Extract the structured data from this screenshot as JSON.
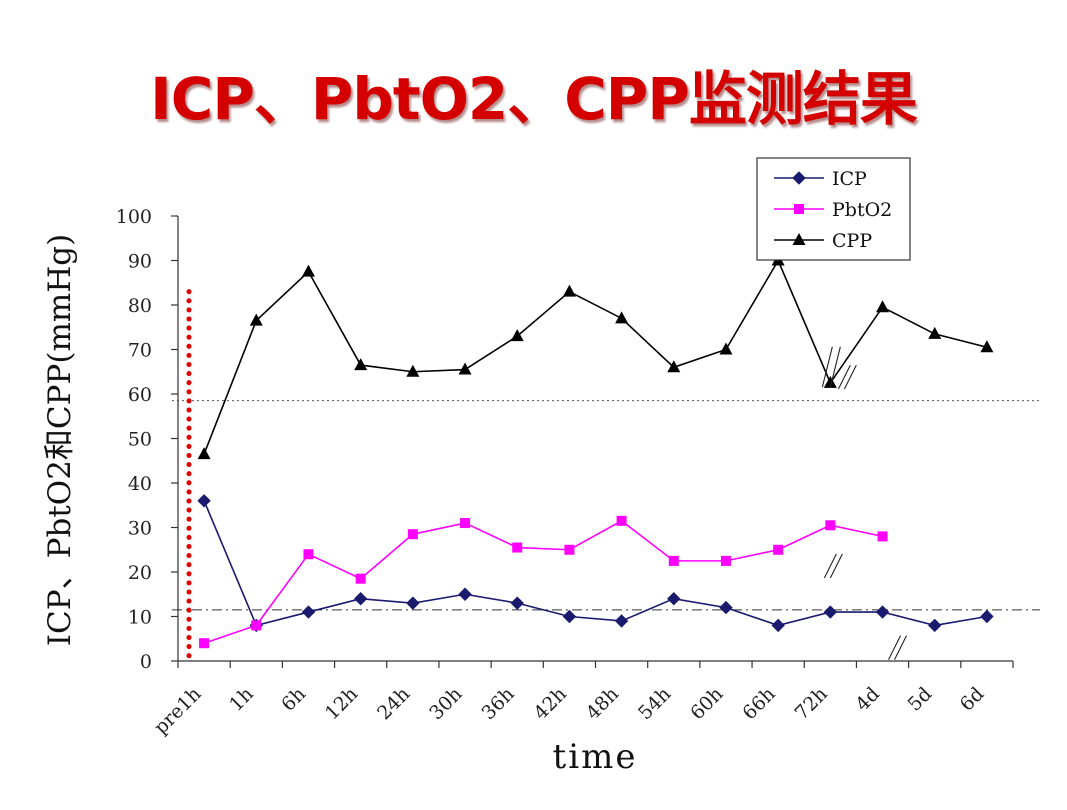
{
  "chart_data": {
    "type": "line",
    "title": "ICP、PbtO2、CPP监测结果",
    "xlabel": "time",
    "ylabel": "ICP、PbtO2和CPP(mmHg)",
    "ylim": [
      0,
      100
    ],
    "yticks": [
      0,
      10,
      20,
      30,
      40,
      50,
      60,
      70,
      80,
      90,
      100
    ],
    "categories": [
      "pre1h",
      "1h",
      "6h",
      "12h",
      "24h",
      "30h",
      "36h",
      "42h",
      "48h",
      "54h",
      "60h",
      "66h",
      "72h",
      "4d",
      "5d",
      "6d"
    ],
    "legend_position": "top-right",
    "series": [
      {
        "name": "ICP",
        "color": "#1a1a6e",
        "marker": "diamond",
        "values": [
          36,
          8,
          11,
          14,
          13,
          15,
          13,
          10,
          9,
          14,
          12,
          8,
          11,
          11,
          8,
          10
        ]
      },
      {
        "name": "PbtO2",
        "color": "#ff00ff",
        "marker": "square",
        "values": [
          4,
          8,
          24,
          18.5,
          28.5,
          31,
          25.5,
          25,
          31.5,
          22.5,
          22.5,
          25,
          30.5,
          28,
          null,
          null
        ]
      },
      {
        "name": "CPP",
        "color": "#000000",
        "marker": "triangle",
        "values": [
          46.5,
          76.5,
          87.5,
          66.5,
          65,
          65.5,
          73,
          83,
          77,
          66,
          70,
          90,
          62.5,
          79.5,
          73.5,
          70.5
        ]
      }
    ],
    "reference_lines": [
      {
        "value": 58.5,
        "style": "dotted",
        "color": "#555555"
      },
      {
        "value": 11.5,
        "style": "dashdot",
        "color": "#333333"
      }
    ],
    "marker_line": {
      "category_position": 0,
      "style": "dotted",
      "color": "#e00000",
      "from": 0,
      "to": 83
    }
  }
}
